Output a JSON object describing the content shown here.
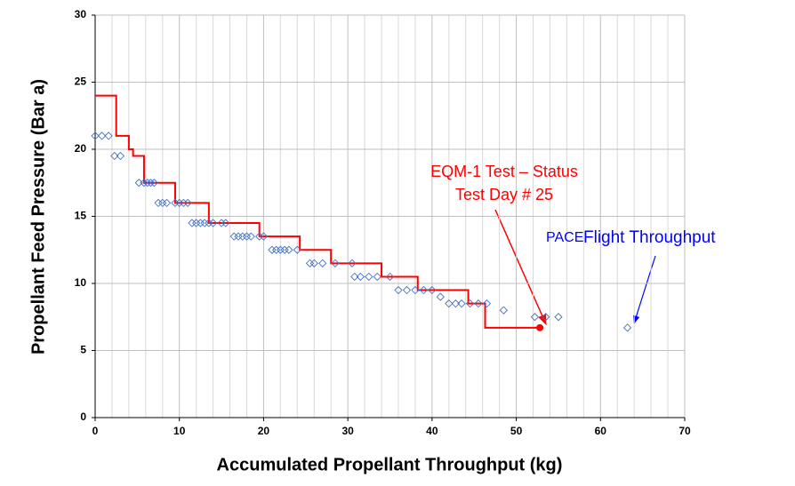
{
  "chart_data": {
    "type": "line",
    "x_label": "Accumulated Propellant Throughput (kg)",
    "y_label": "Propellant Feed Pressure (Bar a)",
    "xlim": [
      0,
      70
    ],
    "ylim": [
      0,
      30
    ],
    "xticks": [
      0,
      10,
      20,
      30,
      40,
      50,
      60,
      70
    ],
    "yticks": [
      0,
      5,
      10,
      15,
      20,
      25,
      30
    ],
    "minor_xticks": [
      2,
      4,
      6,
      8,
      12,
      14,
      16,
      18,
      22,
      24,
      26,
      28,
      32,
      34,
      36,
      38,
      42,
      44,
      46,
      48,
      52,
      54,
      56,
      58,
      62,
      64,
      66,
      68
    ],
    "grid": true,
    "series": [
      {
        "color": "#ff0000",
        "x": [
          0,
          2.5,
          2.5,
          4,
          4,
          4.5,
          4.5,
          5.8,
          5.8,
          9.5,
          9.5,
          13.5,
          13.5,
          19.5,
          19.5,
          24.3,
          24.3,
          28,
          28,
          34,
          34,
          38.3,
          38.3,
          44.3,
          44.3,
          46.3,
          46.3,
          52.8
        ],
        "values": [
          24,
          24,
          21,
          21,
          20,
          20,
          19.5,
          19.5,
          17.5,
          17.5,
          16,
          16,
          14.5,
          14.5,
          13.5,
          13.5,
          12.5,
          12.5,
          11.5,
          11.5,
          10.5,
          10.5,
          9.5,
          9.5,
          8.5,
          8.5,
          6.7,
          6.7
        ]
      },
      {
        "type": "scatter",
        "color": "#4472c4",
        "x": [
          0,
          0.8,
          1.6,
          2.3,
          3,
          5.2,
          5.8,
          6.2,
          6.6,
          7,
          7.5,
          8,
          8.5,
          9.5,
          10,
          10.5,
          11,
          11.5,
          12,
          12.5,
          13,
          13.5,
          14,
          15,
          15.5,
          16.5,
          17,
          17.5,
          18,
          18.5,
          19.5,
          20,
          21,
          21.5,
          22,
          22.5,
          23,
          24,
          25.5,
          26,
          27,
          28.5,
          30.5,
          30.8,
          31.5,
          32.5,
          33.5,
          35,
          36,
          37,
          38,
          39,
          40,
          41,
          42,
          42.8,
          43.5,
          44.5,
          45.5,
          46.5,
          48.5,
          52.2,
          53.5,
          55,
          63.2
        ],
        "values": [
          21,
          21,
          21,
          19.5,
          19.5,
          17.5,
          17.5,
          17.5,
          17.5,
          17.5,
          16,
          16,
          16,
          16,
          16,
          16,
          16,
          14.5,
          14.5,
          14.5,
          14.5,
          14.5,
          14.5,
          14.5,
          14.5,
          13.5,
          13.5,
          13.5,
          13.5,
          13.5,
          13.5,
          13.5,
          12.5,
          12.5,
          12.5,
          12.5,
          12.5,
          12.5,
          11.5,
          11.5,
          11.5,
          11.5,
          11.5,
          10.5,
          10.5,
          10.5,
          10.5,
          10.5,
          9.5,
          9.5,
          9.5,
          9.5,
          9.5,
          9,
          8.5,
          8.5,
          8.5,
          8.5,
          8.5,
          8.5,
          8,
          7.5,
          7.5,
          7.5,
          6.7
        ]
      }
    ],
    "annotations": [
      {
        "text": "EQM-1 Test – Status",
        "color": "#ff0000"
      },
      {
        "text": "Test Day # 25",
        "color": "#ff0000"
      },
      {
        "text": "PACE",
        "color": "#0000ff"
      },
      {
        "text": "Flight Throughput",
        "color": "#0000ff"
      }
    ]
  }
}
